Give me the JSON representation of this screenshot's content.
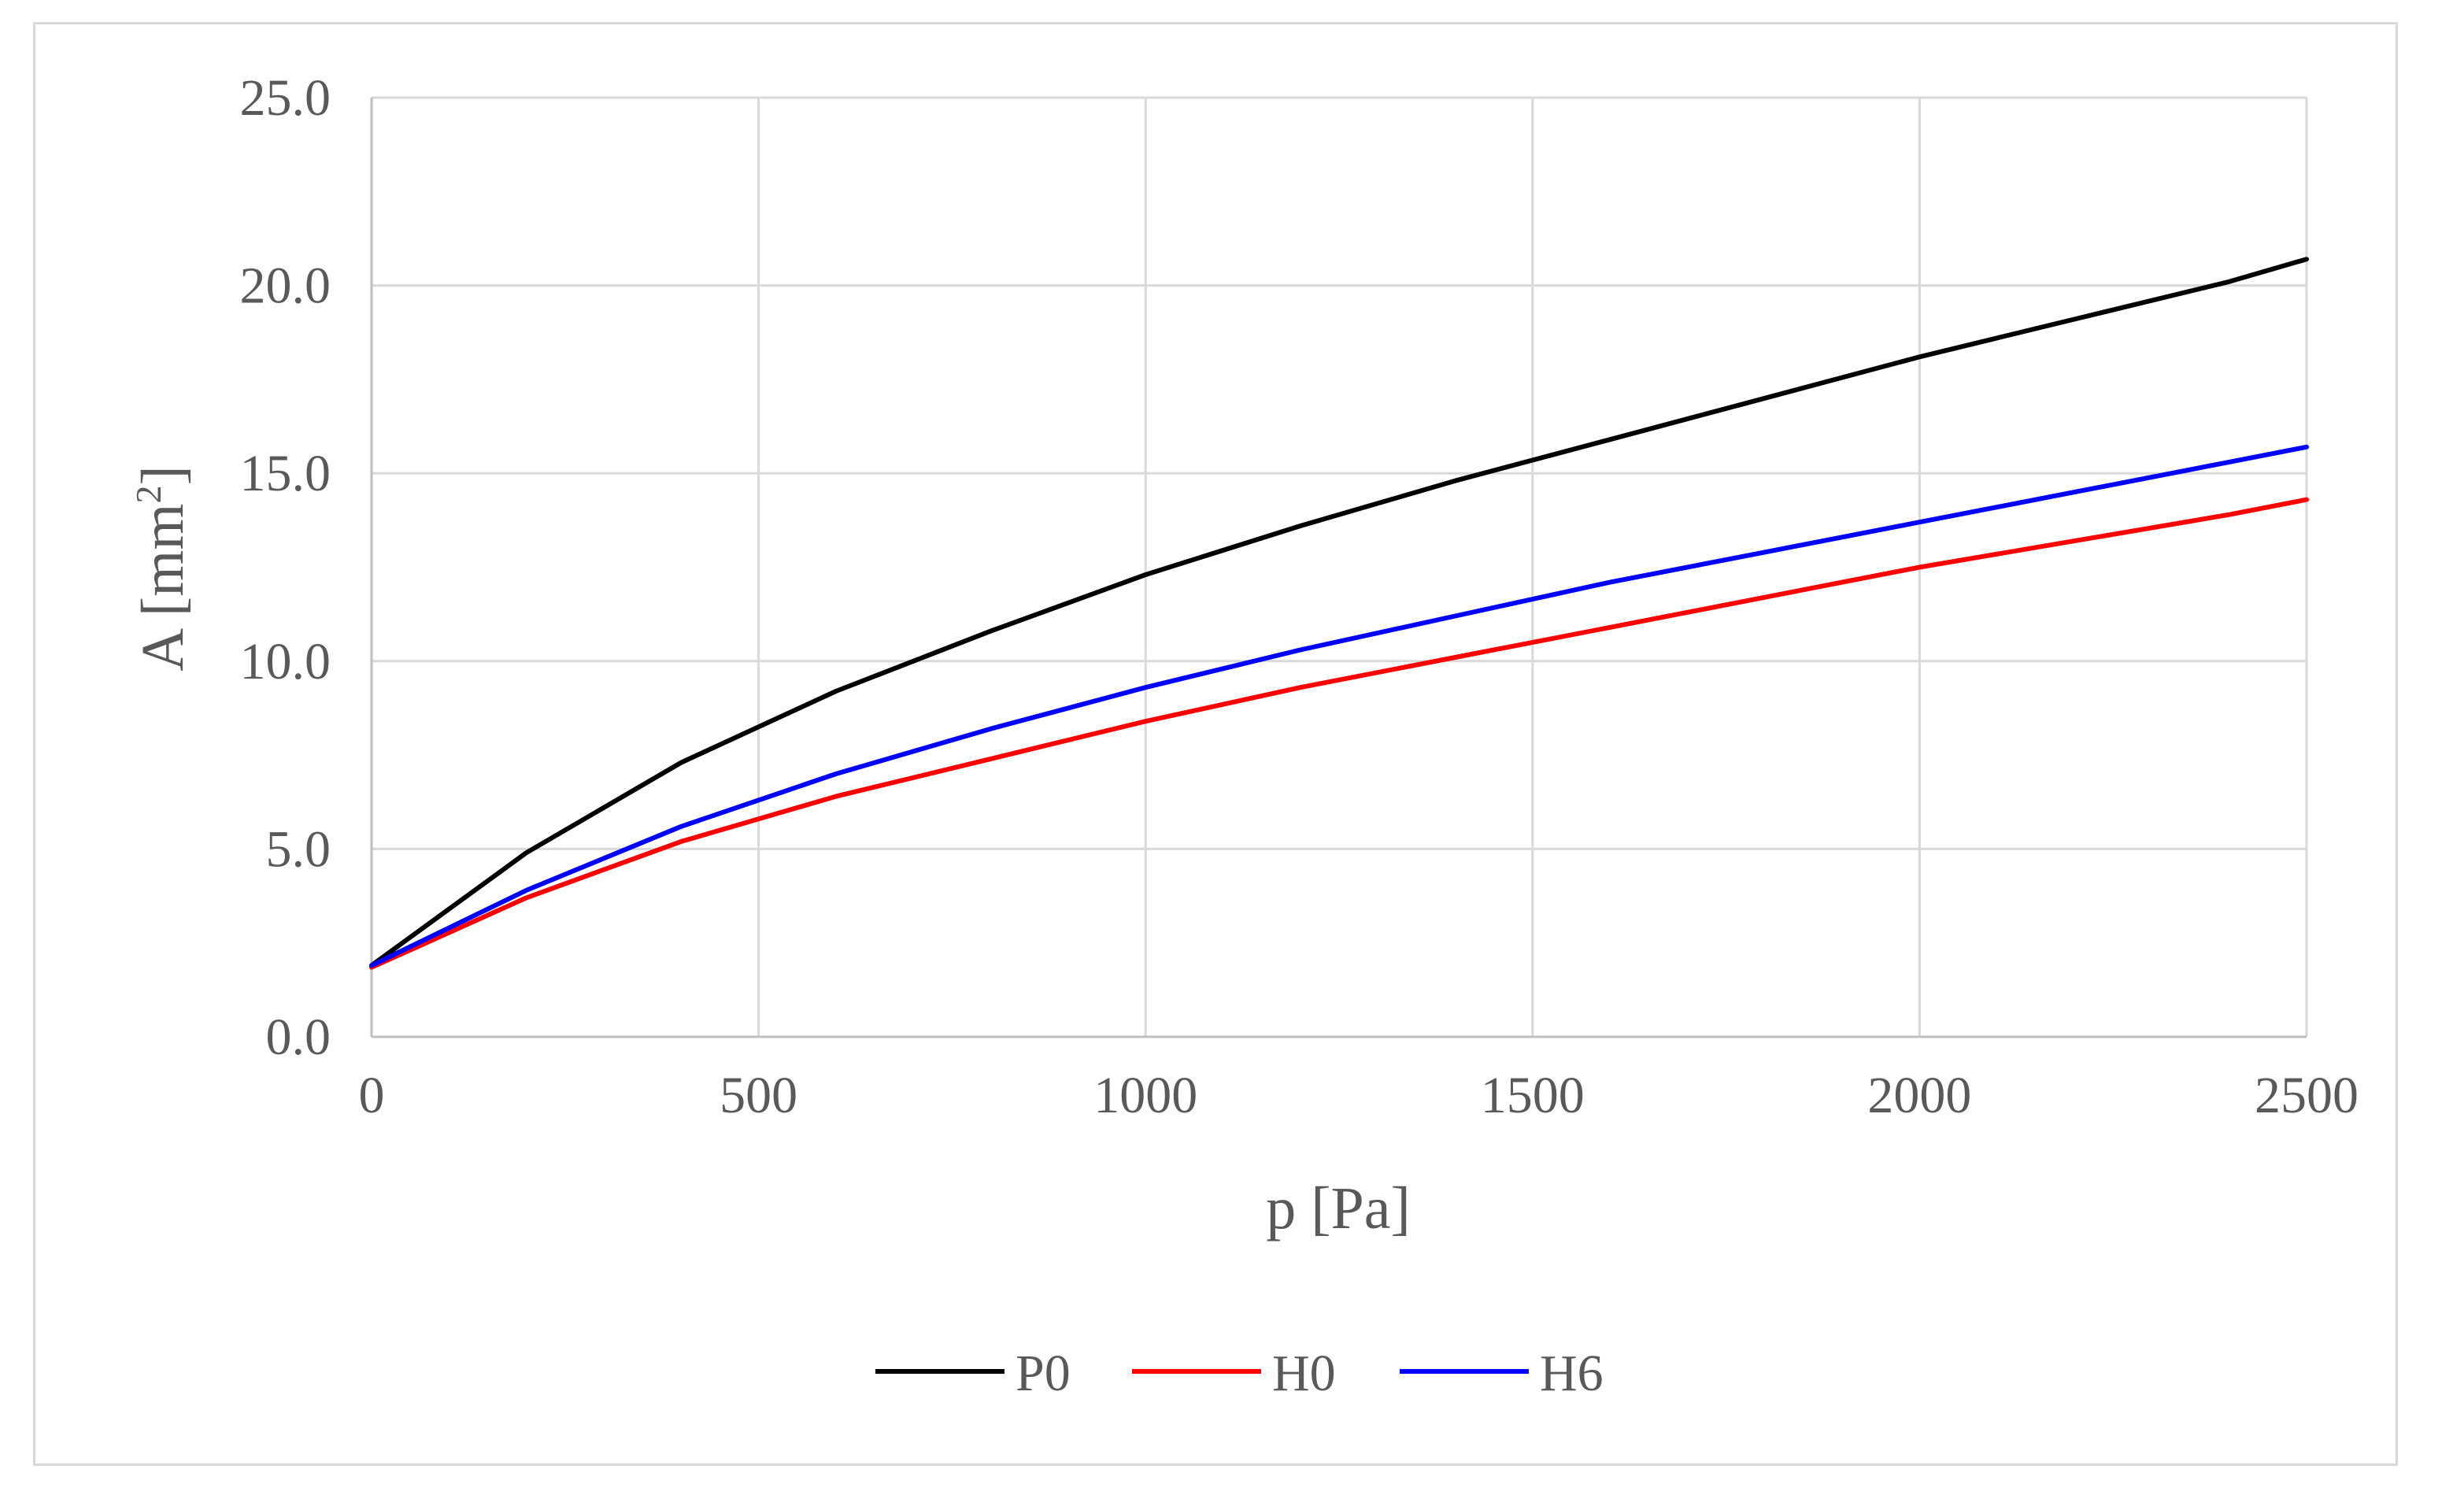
{
  "chart_data": {
    "type": "line",
    "title": "",
    "xlabel": "p [Pa]",
    "ylabel_main": "A [mm",
    "ylabel_sup": "2",
    "ylabel_close": "]",
    "xlim": [
      0,
      2500
    ],
    "ylim": [
      0,
      25
    ],
    "xticks": [
      0,
      500,
      1000,
      1500,
      2000,
      2500
    ],
    "xtick_labels": [
      "0",
      "500",
      "1000",
      "1500",
      "2000",
      "2500"
    ],
    "yticks": [
      0,
      5,
      10,
      15,
      20,
      25
    ],
    "ytick_labels": [
      "0.0",
      "5.0",
      "10.0",
      "15.0",
      "20.0",
      "25.0"
    ],
    "grid": true,
    "legend_position": "bottom-center",
    "x": [
      0,
      200,
      400,
      600,
      800,
      1000,
      1200,
      1400,
      1600,
      1800,
      2000,
      2200,
      2400,
      2500
    ],
    "series": [
      {
        "name": "P0",
        "color": "#000000",
        "values": [
          1.9,
          4.9,
          7.3,
          9.2,
          10.8,
          12.3,
          13.6,
          14.8,
          15.9,
          17.0,
          18.1,
          19.1,
          20.1,
          20.7
        ]
      },
      {
        "name": "H0",
        "color": "#ff0000",
        "values": [
          1.85,
          3.7,
          5.2,
          6.4,
          7.4,
          8.4,
          9.3,
          10.1,
          10.9,
          11.7,
          12.5,
          13.2,
          13.9,
          14.3
        ]
      },
      {
        "name": "H6",
        "color": "#0000ff",
        "values": [
          1.9,
          3.9,
          5.6,
          7.0,
          8.2,
          9.3,
          10.3,
          11.2,
          12.1,
          12.9,
          13.7,
          14.5,
          15.3,
          15.7
        ]
      }
    ]
  }
}
